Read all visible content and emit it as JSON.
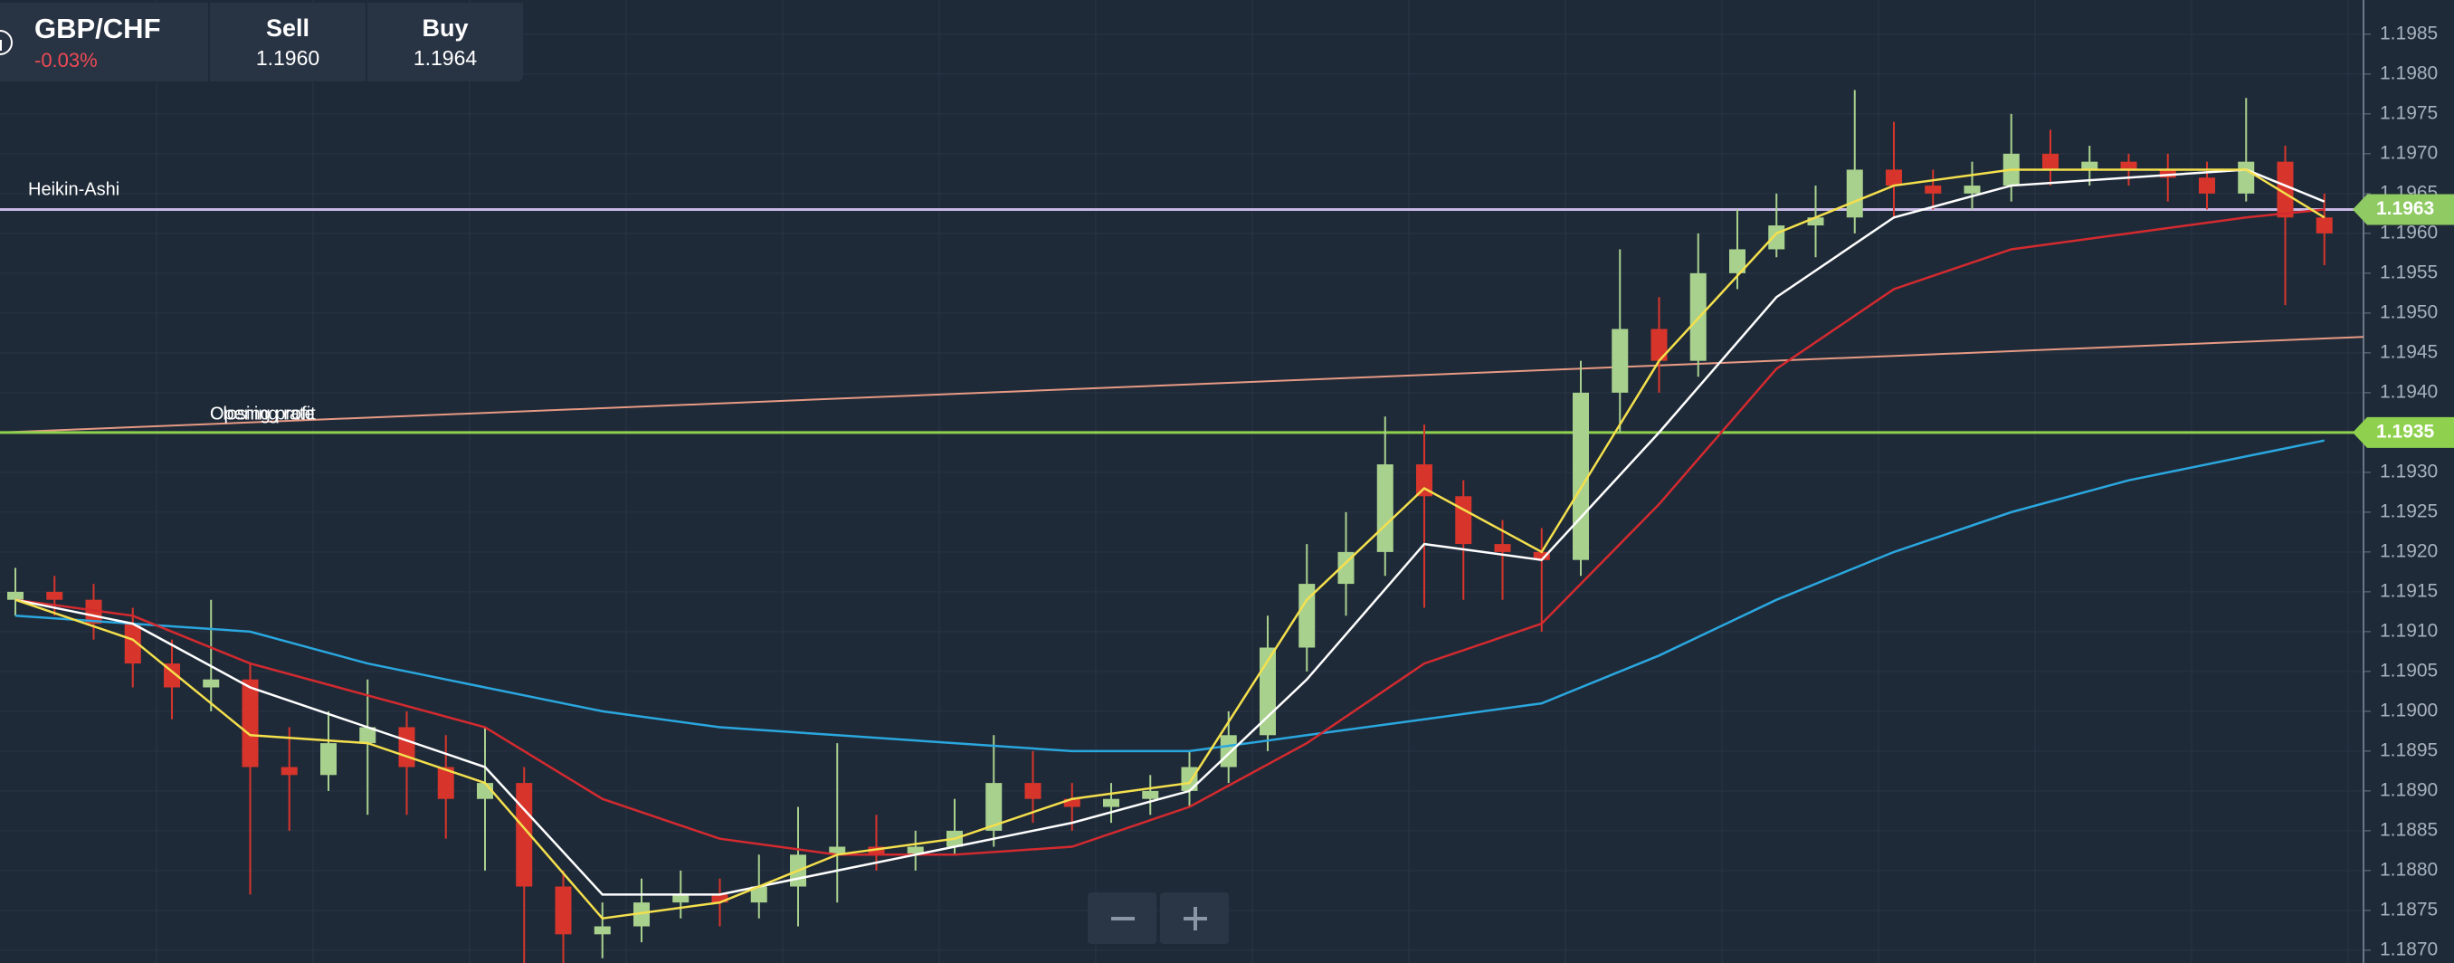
{
  "header": {
    "symbol": "GBP/CHF",
    "change": "-0.03%",
    "sell_label": "Sell",
    "sell": "1.1960",
    "buy_label": "Buy",
    "buy": "1.1964"
  },
  "chart_data": {
    "type": "candlestick",
    "ylim": [
      1.18684,
      1.19893
    ],
    "yticks": [
      {
        "value": 1.187,
        "label": "1.1870"
      },
      1.1875,
      {
        "value": 1.188,
        "label": "1.1880"
      },
      1.1885,
      {
        "value": 1.189,
        "label": "1.1890"
      },
      1.1895,
      {
        "value": 1.19,
        "label": "1.1900"
      },
      1.1905,
      {
        "value": 1.191,
        "label": "1.1910"
      },
      1.1915,
      {
        "value": 1.192,
        "label": "1.1920"
      },
      1.1925,
      {
        "value": 1.193,
        "label": "1.1930"
      },
      1.1935,
      {
        "value": 1.194,
        "label": "1.1940"
      },
      1.1945,
      {
        "value": 1.195,
        "label": "1.1950"
      },
      1.1955,
      {
        "value": 1.196,
        "label": "1.1960"
      },
      1.1965,
      {
        "value": 1.197,
        "label": "1.1970"
      },
      1.1975,
      {
        "value": 1.198,
        "label": "1.1980"
      },
      1.1985
    ],
    "grid": true,
    "up_color": "#a9d18e",
    "down_color": "#d7352b",
    "ohlc": [
      [
        1.1914,
        1.1918,
        1.1912,
        1.1915
      ],
      [
        1.1915,
        1.1917,
        1.1912,
        1.1914
      ],
      [
        1.1914,
        1.1916,
        1.1909,
        1.1911
      ],
      [
        1.1911,
        1.1913,
        1.1903,
        1.1906
      ],
      [
        1.1906,
        1.1909,
        1.1899,
        1.1903
      ],
      [
        1.1903,
        1.1914,
        1.19,
        1.1904
      ],
      [
        1.1904,
        1.1906,
        1.1877,
        1.1893
      ],
      [
        1.1893,
        1.1898,
        1.1885,
        1.1892
      ],
      [
        1.1892,
        1.19,
        1.189,
        1.1896
      ],
      [
        1.1896,
        1.1904,
        1.1887,
        1.1898
      ],
      [
        1.1898,
        1.19,
        1.1887,
        1.1893
      ],
      [
        1.1893,
        1.1897,
        1.1884,
        1.1889
      ],
      [
        1.1889,
        1.1898,
        1.188,
        1.1891
      ],
      [
        1.1891,
        1.1893,
        1.1868,
        1.1878
      ],
      [
        1.1878,
        1.188,
        1.1868,
        1.1872
      ],
      [
        1.1872,
        1.1876,
        1.1869,
        1.1873
      ],
      [
        1.1873,
        1.1879,
        1.1871,
        1.1876
      ],
      [
        1.1876,
        1.188,
        1.1874,
        1.1877
      ],
      [
        1.1877,
        1.1879,
        1.1873,
        1.1876
      ],
      [
        1.1876,
        1.1882,
        1.1874,
        1.1878
      ],
      [
        1.1878,
        1.1888,
        1.1873,
        1.1882
      ],
      [
        1.1882,
        1.1896,
        1.1876,
        1.1883
      ],
      [
        1.1883,
        1.1887,
        1.188,
        1.1882
      ],
      [
        1.1882,
        1.1885,
        1.188,
        1.1883
      ],
      [
        1.1883,
        1.1889,
        1.1882,
        1.1885
      ],
      [
        1.1885,
        1.1897,
        1.1883,
        1.1891
      ],
      [
        1.1891,
        1.1895,
        1.1886,
        1.1889
      ],
      [
        1.1889,
        1.1891,
        1.1885,
        1.1888
      ],
      [
        1.1888,
        1.1891,
        1.1886,
        1.1889
      ],
      [
        1.1889,
        1.1892,
        1.1887,
        1.189
      ],
      [
        1.189,
        1.1895,
        1.1888,
        1.1893
      ],
      [
        1.1893,
        1.19,
        1.1891,
        1.1897
      ],
      [
        1.1897,
        1.1912,
        1.1895,
        1.1908
      ],
      [
        1.1908,
        1.1921,
        1.1905,
        1.1916
      ],
      [
        1.1916,
        1.1925,
        1.1912,
        1.192
      ],
      [
        1.192,
        1.1937,
        1.1917,
        1.1931
      ],
      [
        1.1931,
        1.1936,
        1.1913,
        1.1927
      ],
      [
        1.1927,
        1.1929,
        1.1914,
        1.1921
      ],
      [
        1.1921,
        1.1924,
        1.1914,
        1.192
      ],
      [
        1.192,
        1.1923,
        1.191,
        1.1919
      ],
      [
        1.1919,
        1.1944,
        1.1917,
        1.194
      ],
      [
        1.194,
        1.1958,
        1.1935,
        1.1948
      ],
      [
        1.1948,
        1.1952,
        1.194,
        1.1944
      ],
      [
        1.1944,
        1.196,
        1.1942,
        1.1955
      ],
      [
        1.1955,
        1.1963,
        1.1953,
        1.1958
      ],
      [
        1.1958,
        1.1965,
        1.1957,
        1.1961
      ],
      [
        1.1961,
        1.1966,
        1.1957,
        1.1962
      ],
      [
        1.1962,
        1.1978,
        1.196,
        1.1968
      ],
      [
        1.1968,
        1.1974,
        1.1962,
        1.1966
      ],
      [
        1.1966,
        1.1968,
        1.1963,
        1.1965
      ],
      [
        1.1965,
        1.1969,
        1.1963,
        1.1966
      ],
      [
        1.1966,
        1.1975,
        1.1964,
        1.197
      ],
      [
        1.197,
        1.1973,
        1.1966,
        1.1968
      ],
      [
        1.1968,
        1.1971,
        1.1966,
        1.1969
      ],
      [
        1.1969,
        1.197,
        1.1966,
        1.1968
      ],
      [
        1.1968,
        1.197,
        1.1964,
        1.1967
      ],
      [
        1.1967,
        1.1969,
        1.1963,
        1.1965
      ],
      [
        1.1965,
        1.1977,
        1.1964,
        1.1969
      ],
      [
        1.1969,
        1.1971,
        1.1951,
        1.1962
      ],
      [
        1.1962,
        1.1965,
        1.1956,
        1.196
      ]
    ],
    "ma_x": [
      0,
      3,
      6,
      9,
      12,
      15,
      18,
      21,
      24,
      27,
      30,
      33,
      36,
      39,
      42,
      45,
      48,
      51,
      54,
      57,
      59
    ],
    "series": [
      {
        "color": "#2aa7df",
        "values": [
          1.1912,
          1.1911,
          1.191,
          1.1906,
          1.1903,
          1.19,
          1.1898,
          1.1897,
          1.1896,
          1.1895,
          1.1895,
          1.1897,
          1.1899,
          1.1901,
          1.1907,
          1.1914,
          1.192,
          1.1925,
          1.1929,
          1.1932,
          1.1934
        ]
      },
      {
        "color": "#d42a2f",
        "values": [
          1.1914,
          1.1912,
          1.1906,
          1.1902,
          1.1898,
          1.1889,
          1.1884,
          1.1882,
          1.1882,
          1.1883,
          1.1888,
          1.1896,
          1.1906,
          1.1911,
          1.1926,
          1.1943,
          1.1953,
          1.1958,
          1.196,
          1.1962,
          1.1963
        ]
      },
      {
        "color": "#ffffff",
        "values": [
          1.1914,
          1.1911,
          1.1903,
          1.1898,
          1.1893,
          1.1877,
          1.1877,
          1.188,
          1.1883,
          1.1886,
          1.189,
          1.1904,
          1.1921,
          1.1919,
          1.1935,
          1.1952,
          1.1962,
          1.1966,
          1.1967,
          1.1968,
          1.1964
        ]
      },
      {
        "color": "#f4e04d",
        "values": [
          1.1914,
          1.1909,
          1.1897,
          1.1896,
          1.1891,
          1.1874,
          1.1876,
          1.1882,
          1.1884,
          1.1889,
          1.1891,
          1.1914,
          1.1928,
          1.192,
          1.1944,
          1.196,
          1.1966,
          1.1968,
          1.1968,
          1.1968,
          1.1962
        ]
      }
    ],
    "trendline": {
      "color": "#e79a84",
      "values": [
        1.1935,
        1.1947
      ]
    },
    "price_lines": [
      {
        "name": "Heikin-Ashi",
        "value": 1.1963,
        "color": "#c8b9e6",
        "tag_color": "#8fca63"
      },
      {
        "value": 1.1935,
        "color": "#8fd14f",
        "tag_color": "#8fd14f"
      }
    ],
    "annotations": [
      "Opening rate",
      "Closing profit"
    ]
  }
}
